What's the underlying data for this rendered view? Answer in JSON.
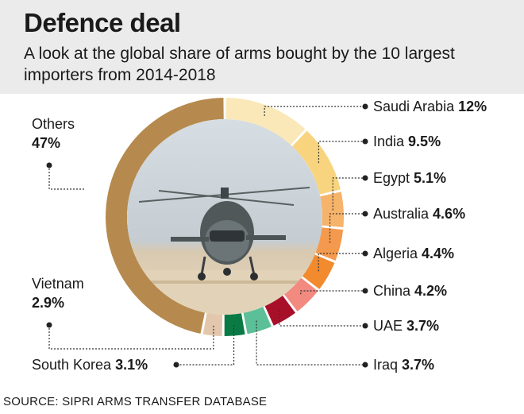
{
  "header": {
    "title": "Defence deal",
    "subtitle": "A look at the global share of arms bought by the 10 largest importers from 2014-2018"
  },
  "source": "SOURCE: SIPRI ARMS TRANSFER DATABASE",
  "colors": {
    "header_bg": "#ebebeb",
    "others": "#b68a4e",
    "saudi_arabia": "#fbe8b8",
    "india": "#f9d47e",
    "egypt": "#f6b36a",
    "australia": "#f49a4e",
    "algeria": "#f28a2e",
    "china": "#f28a80",
    "china_inner": "#e02040",
    "uae": "#a8102a",
    "iraq": "#5bbf97",
    "south_korea": "#0a7a45",
    "vietnam": "#e3c7ad"
  },
  "chart_data": {
    "type": "pie",
    "style": "donut",
    "unit": "%",
    "slices": [
      {
        "label": "Saudi Arabia",
        "value": 12,
        "display": "12%",
        "color": "#fbe8b8"
      },
      {
        "label": "India",
        "value": 9.5,
        "display": "9.5%",
        "color": "#f9d47e"
      },
      {
        "label": "Egypt",
        "value": 5.1,
        "display": "5.1%",
        "color": "#f6b36a"
      },
      {
        "label": "Australia",
        "value": 4.6,
        "display": "4.6%",
        "color": "#f49a4e"
      },
      {
        "label": "Algeria",
        "value": 4.4,
        "display": "4.4%",
        "color": "#f28a2e"
      },
      {
        "label": "China",
        "value": 4.2,
        "display": "4.2%",
        "color": "#f28a80"
      },
      {
        "label": "UAE",
        "value": 3.7,
        "display": "3.7%",
        "color": "#a8102a"
      },
      {
        "label": "Iraq",
        "value": 3.7,
        "display": "3.7%",
        "color": "#5bbf97"
      },
      {
        "label": "South Korea",
        "value": 3.1,
        "display": "3.1%",
        "color": "#0a7a45"
      },
      {
        "label": "Vietnam",
        "value": 2.9,
        "display": "2.9%",
        "color": "#e3c7ad"
      },
      {
        "label": "Others",
        "value": 47,
        "display": "47%",
        "color": "#b68a4e"
      }
    ]
  }
}
